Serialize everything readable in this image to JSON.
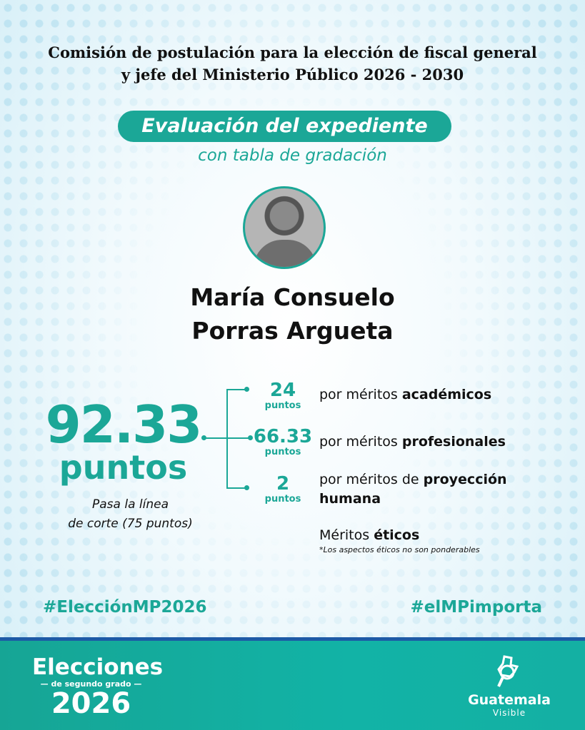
{
  "header": {
    "title_line1": "Comisión de postulación para la elección de fiscal general",
    "title_line2": "y jefe del Ministerio Público 2026 - 2030"
  },
  "banner": {
    "label": "Evaluación del expediente",
    "subtitle": "con tabla de gradación"
  },
  "candidate": {
    "name_line1": "María Consuelo",
    "name_line2": "Porras Argueta"
  },
  "score": {
    "total": "92.33",
    "unit": "puntos",
    "note_line1": "Pasa la línea",
    "note_line2": "de corte (75 puntos)"
  },
  "breakdown": [
    {
      "value": "24",
      "unit": "puntos",
      "label_prefix": "por méritos ",
      "label_bold": "académicos"
    },
    {
      "value": "66.33",
      "unit": "puntos",
      "label_prefix": "por méritos ",
      "label_bold": "profesionales"
    },
    {
      "value": "2",
      "unit": "puntos",
      "label_prefix": "por méritos de ",
      "label_bold": "proyección",
      "label_line2": "humana"
    }
  ],
  "ethics": {
    "prefix": "Méritos ",
    "bold": "éticos",
    "note": "*Los aspectos éticos no son ponderables"
  },
  "hashtags": {
    "left": "#ElecciónMP2026",
    "right": "#elMPimporta"
  },
  "footer": {
    "logo_left": {
      "line1": "Elecciones",
      "line2": "— de segundo grado —",
      "line3": "2026"
    },
    "logo_right": {
      "line1": "Guatemala",
      "line2": "Visible",
      "icon": "guatemala-map-magnifier-icon"
    }
  },
  "colors": {
    "accent": "#1ba797",
    "footer_band": "#1d5aa6"
  }
}
